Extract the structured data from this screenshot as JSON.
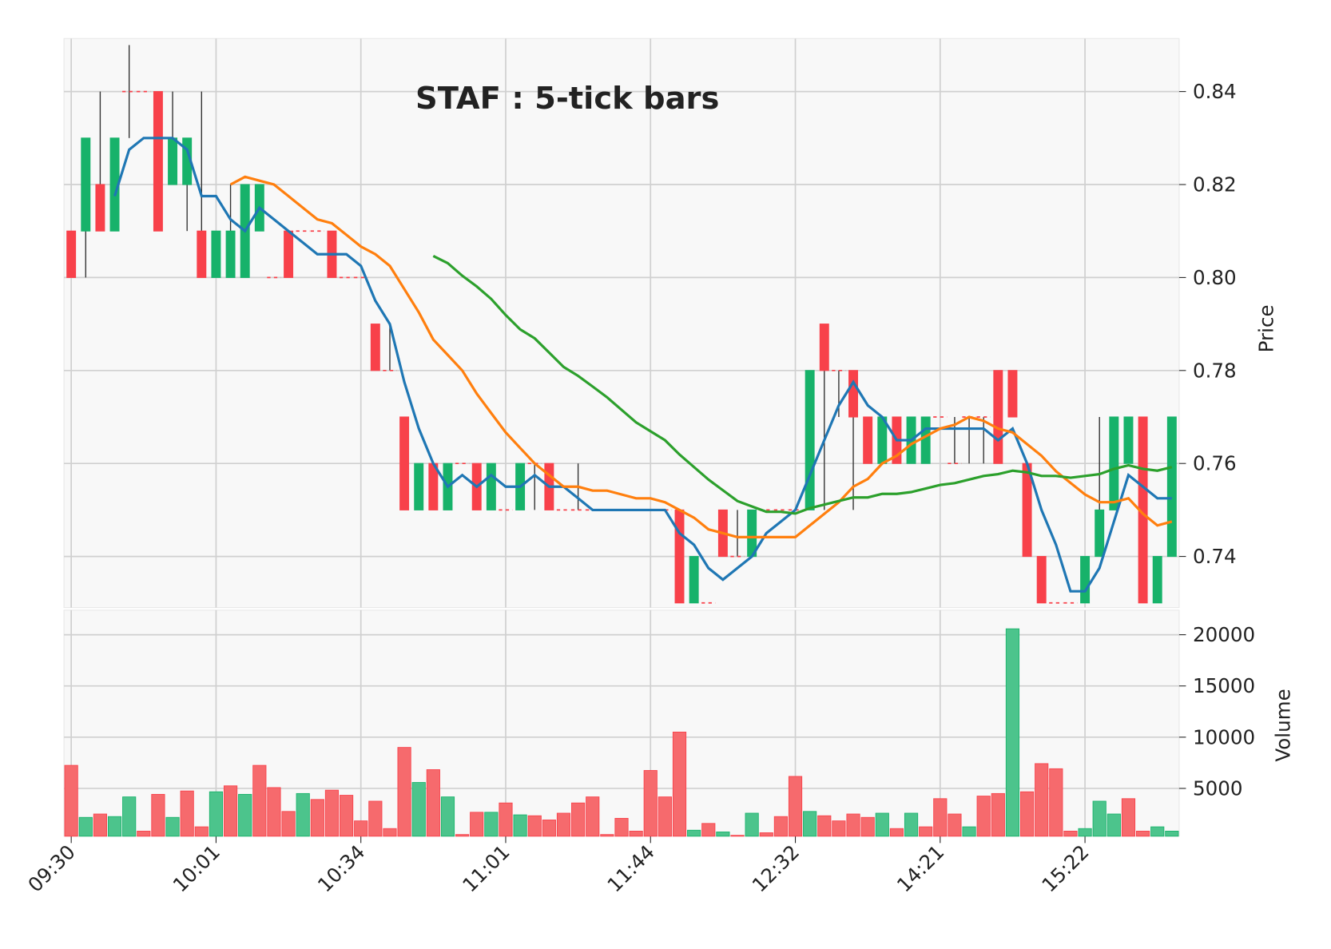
{
  "chart_data": {
    "type": "candlestick",
    "title": "STAF : 5-tick bars",
    "ylabel": "Price",
    "volume_label": "Volume",
    "up_color": "#17b26a",
    "down_color": "#f8414a",
    "volume_up_color": "#4cc48c",
    "volume_down_color": "#f66a6d",
    "grid": true,
    "open": [
      0.81,
      0.81,
      0.82,
      0.81,
      0.84,
      0.84,
      0.84,
      0.82,
      0.82,
      0.81,
      0.8,
      0.8,
      0.8,
      0.81,
      0.8,
      0.81,
      0.81,
      0.81,
      0.81,
      0.8,
      0.8,
      0.79,
      0.78,
      0.77,
      0.75,
      0.76,
      0.75,
      0.76,
      0.76,
      0.75,
      0.75,
      0.75,
      0.76,
      0.76,
      0.75,
      0.75,
      0.75,
      0.75,
      0.75,
      0.75,
      0.75,
      0.75,
      0.75,
      0.73,
      0.73,
      0.75,
      0.74,
      0.74,
      0.75,
      0.75,
      0.75,
      0.75,
      0.79,
      0.78,
      0.78,
      0.77,
      0.76,
      0.77,
      0.76,
      0.76,
      0.77,
      0.76,
      0.77,
      0.77,
      0.78,
      0.78,
      0.76,
      0.74,
      0.73,
      0.73,
      0.73,
      0.74,
      0.75,
      0.76,
      0.77,
      0.73,
      0.74
    ],
    "high": [
      0.81,
      0.83,
      0.84,
      0.83,
      0.85,
      0.84,
      0.84,
      0.84,
      0.83,
      0.84,
      0.81,
      0.82,
      0.82,
      0.82,
      0.8,
      0.81,
      0.81,
      0.81,
      0.81,
      0.8,
      0.8,
      0.79,
      0.79,
      0.77,
      0.76,
      0.76,
      0.76,
      0.76,
      0.76,
      0.76,
      0.75,
      0.76,
      0.76,
      0.76,
      0.75,
      0.76,
      0.75,
      0.75,
      0.75,
      0.75,
      0.75,
      0.75,
      0.75,
      0.74,
      0.73,
      0.75,
      0.75,
      0.75,
      0.75,
      0.75,
      0.75,
      0.78,
      0.79,
      0.78,
      0.78,
      0.77,
      0.77,
      0.77,
      0.77,
      0.77,
      0.77,
      0.77,
      0.77,
      0.77,
      0.78,
      0.78,
      0.76,
      0.74,
      0.73,
      0.73,
      0.74,
      0.77,
      0.77,
      0.77,
      0.77,
      0.74,
      0.77
    ],
    "low": [
      0.8,
      0.8,
      0.81,
      0.81,
      0.83,
      0.84,
      0.81,
      0.82,
      0.81,
      0.8,
      0.8,
      0.8,
      0.8,
      0.81,
      0.8,
      0.8,
      0.81,
      0.81,
      0.8,
      0.8,
      0.8,
      0.78,
      0.78,
      0.75,
      0.75,
      0.75,
      0.75,
      0.76,
      0.75,
      0.75,
      0.75,
      0.75,
      0.75,
      0.75,
      0.75,
      0.75,
      0.75,
      0.75,
      0.75,
      0.75,
      0.75,
      0.75,
      0.73,
      0.73,
      0.73,
      0.74,
      0.74,
      0.74,
      0.75,
      0.75,
      0.75,
      0.75,
      0.75,
      0.77,
      0.75,
      0.76,
      0.76,
      0.76,
      0.76,
      0.76,
      0.77,
      0.76,
      0.76,
      0.76,
      0.76,
      0.77,
      0.74,
      0.73,
      0.73,
      0.73,
      0.73,
      0.74,
      0.75,
      0.76,
      0.73,
      0.73,
      0.74
    ],
    "close": [
      0.8,
      0.83,
      0.81,
      0.83,
      0.84,
      0.84,
      0.81,
      0.83,
      0.83,
      0.8,
      0.81,
      0.81,
      0.82,
      0.82,
      0.8,
      0.8,
      0.81,
      0.81,
      0.8,
      0.8,
      0.8,
      0.78,
      0.78,
      0.75,
      0.76,
      0.75,
      0.76,
      0.76,
      0.75,
      0.76,
      0.75,
      0.76,
      0.76,
      0.75,
      0.75,
      0.75,
      0.75,
      0.75,
      0.75,
      0.75,
      0.75,
      0.75,
      0.73,
      0.74,
      0.73,
      0.74,
      0.74,
      0.75,
      0.75,
      0.75,
      0.75,
      0.78,
      0.78,
      0.78,
      0.77,
      0.76,
      0.77,
      0.76,
      0.77,
      0.77,
      0.77,
      0.76,
      0.77,
      0.77,
      0.76,
      0.77,
      0.74,
      0.73,
      0.73,
      0.73,
      0.74,
      0.75,
      0.77,
      0.77,
      0.73,
      0.74,
      0.77
    ],
    "volume": [
      7250,
      2170,
      2500,
      2250,
      4170,
      830,
      4420,
      2170,
      4750,
      1250,
      4670,
      5250,
      4420,
      7250,
      5080,
      2750,
      4500,
      3920,
      4830,
      4330,
      1830,
      3750,
      1080,
      9000,
      5580,
      6830,
      4170,
      500,
      2670,
      2670,
      3580,
      2420,
      2330,
      1920,
      2580,
      3580,
      4170,
      500,
      2080,
      830,
      6750,
      4170,
      10500,
      920,
      1580,
      750,
      420,
      2580,
      670,
      2250,
      6170,
      2750,
      2330,
      1830,
      2500,
      2170,
      2580,
      1080,
      2580,
      1250,
      4000,
      2500,
      1250,
      4250,
      4500,
      20580,
      4670,
      7420,
      6920,
      830,
      1080,
      3750,
      2500,
      4000,
      830,
      1250,
      830
    ],
    "mav": [
      {
        "window": 4,
        "color": "#1f77b4"
      },
      {
        "window": 12,
        "color": "#ff7f0e"
      },
      {
        "window": 26,
        "color": "#2ca02c"
      }
    ],
    "xlim": [
      -0.5,
      76.5
    ],
    "xticks": [
      {
        "value": 0,
        "label": "09:30"
      },
      {
        "value": 10,
        "label": "10:01"
      },
      {
        "value": 20,
        "label": "10:34"
      },
      {
        "value": 30,
        "label": "11:01"
      },
      {
        "value": 40,
        "label": "11:44"
      },
      {
        "value": 50,
        "label": "12:32"
      },
      {
        "value": 60,
        "label": "14:21"
      },
      {
        "value": 70,
        "label": "15:22"
      }
    ],
    "ylim": [
      0.729,
      0.8514
    ],
    "yticks": [
      0.74,
      0.76,
      0.78,
      {
        "value": 0.8,
        "label": "0.80"
      },
      0.82,
      0.84
    ],
    "volume_ylim": [
      333,
      22400
    ],
    "volume_yticks": [
      5000,
      10000,
      15000,
      20000
    ]
  }
}
